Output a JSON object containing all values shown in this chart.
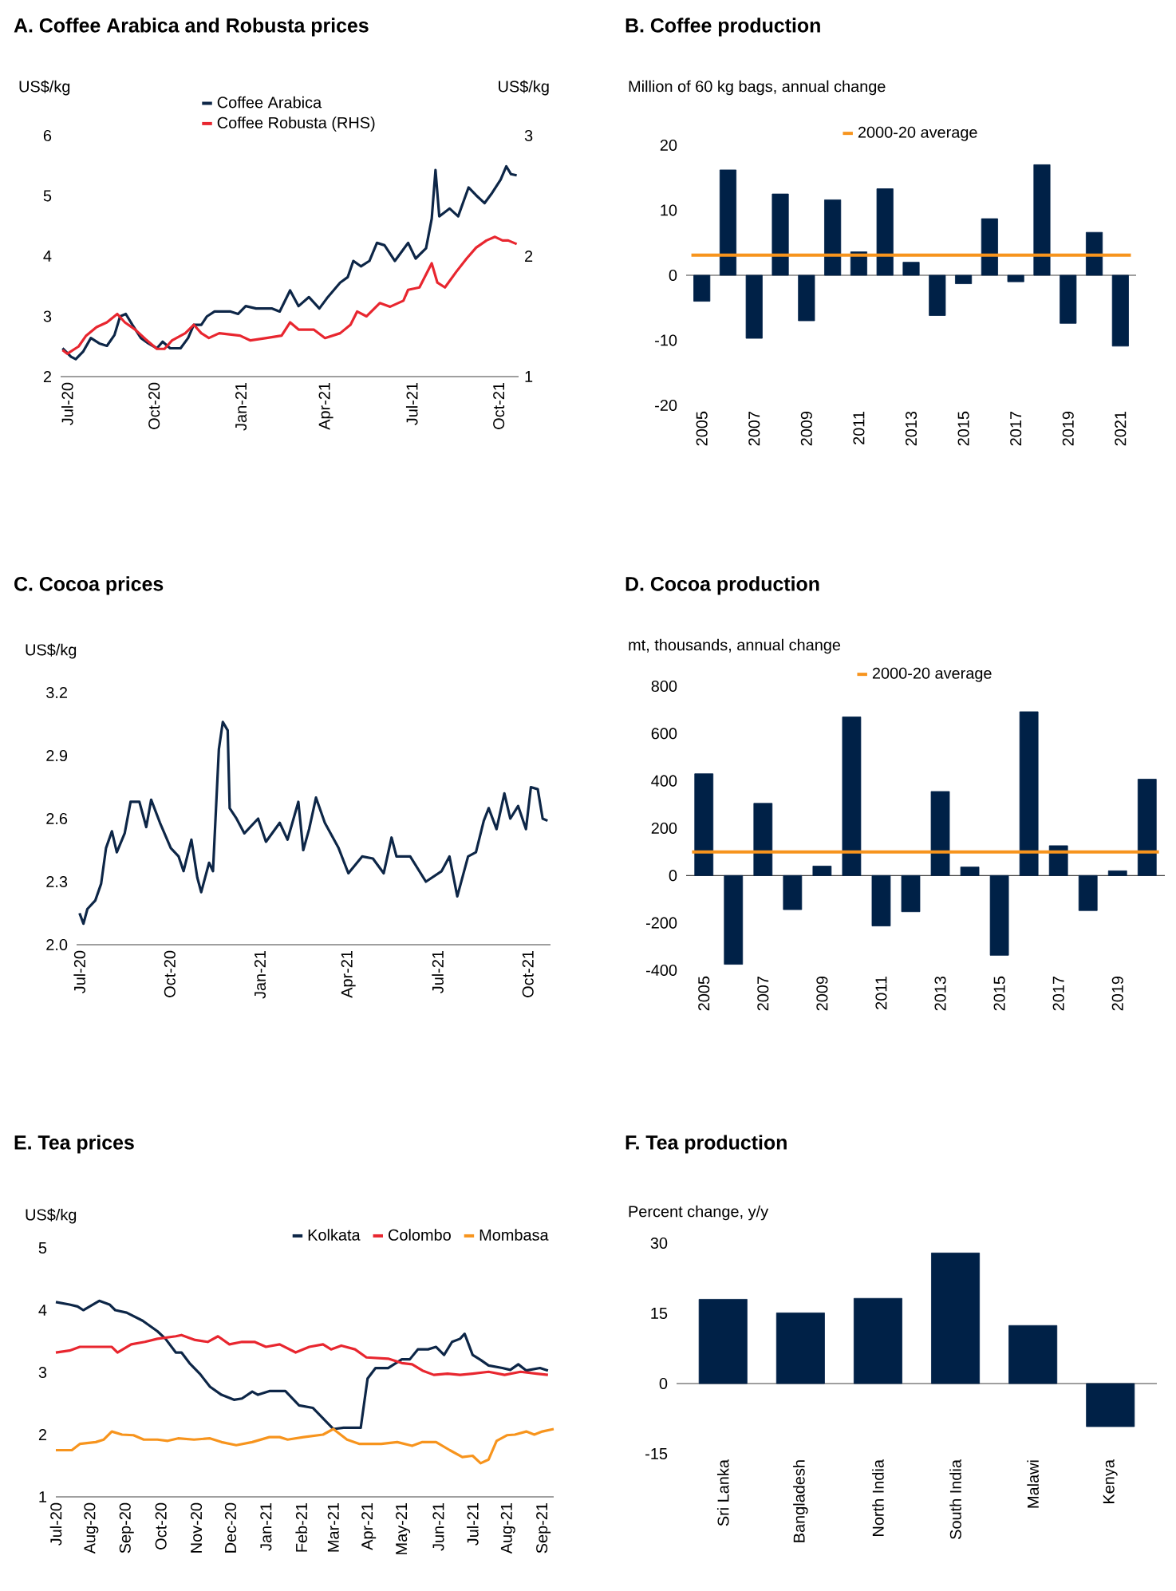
{
  "chart_data": [
    {
      "type": "line",
      "title": "A. Coffee Arabica and Robusta prices",
      "ylabel": "US$/kg",
      "y2label": "US$/kg",
      "legend": "top",
      "xlim": [
        "2020-06-24",
        "2021-10-22"
      ],
      "ylim": [
        2,
        6
      ],
      "yticks": [
        2,
        3,
        4,
        5,
        6
      ],
      "y2lim": [
        1,
        3
      ],
      "y2ticks": [
        1,
        2,
        3
      ],
      "xticks": [
        {
          "value": "2020-07-01",
          "label": "Jul-20"
        },
        {
          "value": "2020-10-01",
          "label": "Oct-20"
        },
        {
          "value": "2021-01-01",
          "label": "Jan-21"
        },
        {
          "value": "2021-04-01",
          "label": "Apr-21"
        },
        {
          "value": "2021-07-01",
          "label": "Jul-21"
        },
        {
          "value": "2021-10-01",
          "label": "Oct-21"
        }
      ],
      "series": [
        {
          "name": "Coffee Arabica",
          "color": "#0d2647",
          "x": [
            "2020-06-26",
            "2020-07-05",
            "2020-07-10",
            "2020-07-18",
            "2020-07-26",
            "2020-08-04",
            "2020-08-12",
            "2020-08-20",
            "2020-08-26",
            "2020-09-01",
            "2020-09-08",
            "2020-09-17",
            "2020-09-25",
            "2020-10-04",
            "2020-10-10",
            "2020-10-18",
            "2020-10-29",
            "2020-11-06",
            "2020-11-12",
            "2020-11-20",
            "2020-11-26",
            "2020-12-04",
            "2020-12-21",
            "2020-12-29",
            "2021-01-06",
            "2021-01-17",
            "2021-02-03",
            "2021-02-11",
            "2021-02-22",
            "2021-03-03",
            "2021-03-14",
            "2021-03-25",
            "2021-04-02",
            "2021-04-16",
            "2021-04-24",
            "2021-04-30",
            "2021-05-08",
            "2021-05-17",
            "2021-05-25",
            "2021-06-02",
            "2021-06-13",
            "2021-06-27",
            "2021-07-05",
            "2021-07-16",
            "2021-07-22",
            "2021-07-26",
            "2021-07-30",
            "2021-08-10",
            "2021-08-19",
            "2021-08-30",
            "2021-09-07",
            "2021-09-16",
            "2021-09-24",
            "2021-10-03",
            "2021-10-09",
            "2021-10-14",
            "2021-10-20"
          ],
          "values": [
            2.47,
            2.33,
            2.29,
            2.42,
            2.64,
            2.55,
            2.51,
            2.69,
            3.0,
            3.04,
            2.86,
            2.64,
            2.55,
            2.47,
            2.58,
            2.47,
            2.47,
            2.64,
            2.86,
            2.86,
            3.0,
            3.08,
            3.08,
            3.04,
            3.17,
            3.13,
            3.13,
            3.08,
            3.43,
            3.17,
            3.32,
            3.13,
            3.3,
            3.56,
            3.65,
            3.92,
            3.83,
            3.92,
            4.22,
            4.18,
            3.92,
            4.22,
            3.96,
            4.13,
            4.62,
            5.43,
            4.66,
            4.79,
            4.66,
            5.14,
            5.01,
            4.88,
            5.05,
            5.27,
            5.49,
            5.36,
            5.34
          ]
        },
        {
          "name": "Coffee Robusta (RHS)",
          "color": "#e8262f",
          "axis": "y2",
          "x": [
            "2020-06-26",
            "2020-07-01",
            "2020-07-13",
            "2020-07-21",
            "2020-08-01",
            "2020-08-12",
            "2020-08-23",
            "2020-08-31",
            "2020-09-11",
            "2020-09-22",
            "2020-10-04",
            "2020-10-12",
            "2020-10-20",
            "2020-11-03",
            "2020-11-12",
            "2020-11-20",
            "2020-11-28",
            "2020-12-09",
            "2020-12-31",
            "2021-01-11",
            "2021-01-28",
            "2021-02-13",
            "2021-02-22",
            "2021-03-03",
            "2021-03-19",
            "2021-03-31",
            "2021-04-16",
            "2021-04-27",
            "2021-05-04",
            "2021-05-14",
            "2021-05-28",
            "2021-06-08",
            "2021-06-22",
            "2021-06-27",
            "2021-07-09",
            "2021-07-22",
            "2021-07-28",
            "2021-08-05",
            "2021-08-17",
            "2021-08-28",
            "2021-09-07",
            "2021-09-18",
            "2021-09-27",
            "2021-10-05",
            "2021-10-11",
            "2021-10-20"
          ],
          "values": [
            1.22,
            1.19,
            1.25,
            1.34,
            1.41,
            1.45,
            1.52,
            1.45,
            1.39,
            1.31,
            1.23,
            1.23,
            1.3,
            1.36,
            1.43,
            1.36,
            1.32,
            1.36,
            1.34,
            1.3,
            1.32,
            1.34,
            1.45,
            1.39,
            1.39,
            1.32,
            1.36,
            1.43,
            1.54,
            1.5,
            1.61,
            1.58,
            1.63,
            1.72,
            1.74,
            1.94,
            1.78,
            1.74,
            1.87,
            1.98,
            2.07,
            2.13,
            2.16,
            2.13,
            2.13,
            2.1
          ]
        }
      ]
    },
    {
      "type": "bar",
      "title": "B. Coffee production",
      "ylabel": "Million of 60 kg bags, annual change",
      "legend": "top",
      "color": "#002147",
      "categories": [
        "2005",
        null,
        "2007",
        null,
        "2009",
        null,
        "2011",
        null,
        "2013",
        null,
        "2015",
        null,
        "2017",
        null,
        "2019",
        null,
        "2021"
      ],
      "values": [
        -4.0,
        16.2,
        -9.7,
        12.5,
        -7.0,
        11.6,
        3.6,
        13.3,
        2.0,
        -6.2,
        -1.3,
        8.7,
        -1.0,
        17.0,
        -7.4,
        6.6,
        -10.9
      ],
      "ylim": [
        -20,
        20
      ],
      "yticks": [
        -20,
        -10,
        0,
        10,
        20
      ],
      "ref_lines": [
        {
          "axis": "y",
          "value": 3.1,
          "label": "2000-20 average",
          "color": "#f7941d"
        }
      ]
    },
    {
      "type": "line",
      "title": "C. Cocoa prices",
      "ylabel": "US$/kg",
      "xlim": [
        "2020-06-28",
        "2021-10-24"
      ],
      "ylim": [
        2.0,
        3.2
      ],
      "yticks": [
        {
          "value": 2.0,
          "label": "2.0"
        },
        2.3,
        2.6,
        2.9,
        3.2
      ],
      "xticks": [
        {
          "value": "2020-07-01",
          "label": "Jul-20"
        },
        {
          "value": "2020-10-01",
          "label": "Oct-20"
        },
        {
          "value": "2021-01-01",
          "label": "Jan-21"
        },
        {
          "value": "2021-04-01",
          "label": "Apr-21"
        },
        {
          "value": "2021-07-01",
          "label": "Jul-21"
        },
        {
          "value": "2021-10-01",
          "label": "Oct-21"
        }
      ],
      "series": [
        {
          "color": "#0d2647",
          "x": [
            "2020-07-01",
            "2020-07-05",
            "2020-07-09",
            "2020-07-17",
            "2020-07-23",
            "2020-07-28",
            "2020-08-03",
            "2020-08-08",
            "2020-08-16",
            "2020-08-22",
            "2020-08-31",
            "2020-09-07",
            "2020-09-12",
            "2020-09-21",
            "2020-10-02",
            "2020-10-10",
            "2020-10-15",
            "2020-10-23",
            "2020-10-29",
            "2020-11-02",
            "2020-11-10",
            "2020-11-14",
            "2020-11-20",
            "2020-11-24",
            "2020-11-29",
            "2020-12-01",
            "2020-12-08",
            "2020-12-16",
            "2020-12-30",
            "2021-01-07",
            "2021-01-21",
            "2021-01-29",
            "2021-02-09",
            "2021-02-14",
            "2021-02-20",
            "2021-02-27",
            "2021-03-08",
            "2021-03-22",
            "2021-04-01",
            "2021-04-15",
            "2021-04-26",
            "2021-05-07",
            "2021-05-15",
            "2021-05-20",
            "2021-06-03",
            "2021-06-19",
            "2021-07-05",
            "2021-07-13",
            "2021-07-21",
            "2021-08-01",
            "2021-08-09",
            "2021-08-17",
            "2021-08-22",
            "2021-08-30",
            "2021-09-07",
            "2021-09-13",
            "2021-09-21",
            "2021-09-29",
            "2021-10-04",
            "2021-10-11",
            "2021-10-16",
            "2021-10-21"
          ],
          "values": [
            2.15,
            2.1,
            2.17,
            2.21,
            2.29,
            2.46,
            2.54,
            2.44,
            2.53,
            2.68,
            2.68,
            2.56,
            2.69,
            2.58,
            2.46,
            2.42,
            2.35,
            2.5,
            2.32,
            2.25,
            2.39,
            2.35,
            2.93,
            3.06,
            3.02,
            2.65,
            2.6,
            2.53,
            2.6,
            2.49,
            2.58,
            2.5,
            2.68,
            2.45,
            2.55,
            2.7,
            2.58,
            2.46,
            2.34,
            2.42,
            2.41,
            2.34,
            2.51,
            2.42,
            2.42,
            2.3,
            2.35,
            2.42,
            2.23,
            2.42,
            2.44,
            2.59,
            2.65,
            2.55,
            2.72,
            2.6,
            2.66,
            2.55,
            2.75,
            2.74,
            2.6,
            2.59
          ]
        }
      ]
    },
    {
      "type": "bar",
      "title": "D. Cocoa production",
      "ylabel": "mt, thousands, annual change",
      "legend": "top",
      "color": "#002147",
      "categories": [
        "2005",
        null,
        "2007",
        null,
        "2009",
        null,
        "2011",
        null,
        "2013",
        null,
        "2015",
        null,
        "2017",
        null,
        "2019",
        null
      ],
      "values": [
        430,
        -375,
        305,
        -144,
        40,
        670,
        -213,
        -153,
        355,
        36,
        -337,
        692,
        126,
        -148,
        20,
        407
      ],
      "ylim": [
        -400,
        800
      ],
      "yticks": [
        -400,
        -200,
        0,
        200,
        400,
        600,
        800
      ],
      "ref_lines": [
        {
          "axis": "y",
          "value": 100,
          "label": "2000-20 average",
          "color": "#f7941d"
        }
      ]
    },
    {
      "type": "line",
      "title": "E. Tea prices",
      "ylabel": "US$/kg",
      "legend": "top right",
      "xlim": [
        "2020-07-01",
        "2021-09-10"
      ],
      "ylim": [
        1,
        5
      ],
      "yticks": [
        1,
        2,
        3,
        4,
        5
      ],
      "xticks": [
        {
          "value": "2020-07-01",
          "label": "Jul-20"
        },
        {
          "value": "2020-08-01",
          "label": "Aug-20"
        },
        {
          "value": "2020-09-01",
          "label": "Sep-20"
        },
        {
          "value": "2020-10-01",
          "label": "Oct-20"
        },
        {
          "value": "2020-11-01",
          "label": "Nov-20"
        },
        {
          "value": "2020-12-01",
          "label": "Dec-20"
        },
        {
          "value": "2021-01-01",
          "label": "Jan-21"
        },
        {
          "value": "2021-02-01",
          "label": "Feb-21"
        },
        {
          "value": "2021-03-01",
          "label": "Mar-21"
        },
        {
          "value": "2021-04-01",
          "label": "Apr-21"
        },
        {
          "value": "2021-05-01",
          "label": "May-21"
        },
        {
          "value": "2021-06-01",
          "label": "Jun-21"
        },
        {
          "value": "2021-07-01",
          "label": "Jul-21"
        },
        {
          "value": "2021-08-01",
          "label": "Aug-21"
        },
        {
          "value": "2021-09-01",
          "label": "Sep-21"
        }
      ],
      "series": [
        {
          "name": "Kolkata",
          "color": "#0d2647",
          "x": [
            "2020-07-01",
            "2020-07-13",
            "2020-07-20",
            "2020-07-25",
            "2020-08-08",
            "2020-08-17",
            "2020-08-22",
            "2020-09-01",
            "2020-09-15",
            "2020-09-28",
            "2020-10-05",
            "2020-10-14",
            "2020-10-19",
            "2020-10-26",
            "2020-11-04",
            "2020-11-13",
            "2020-11-23",
            "2020-12-04",
            "2020-12-11",
            "2020-12-20",
            "2020-12-25",
            "2021-01-04",
            "2021-01-18",
            "2021-01-30",
            "2021-02-11",
            "2021-02-20",
            "2021-03-01",
            "2021-03-10",
            "2021-03-25",
            "2021-03-31",
            "2021-04-07",
            "2021-04-18",
            "2021-04-30",
            "2021-05-07",
            "2021-05-14",
            "2021-05-23",
            "2021-05-30",
            "2021-06-06",
            "2021-06-13",
            "2021-06-20",
            "2021-06-24",
            "2021-07-01",
            "2021-07-08",
            "2021-07-15",
            "2021-07-27",
            "2021-08-03",
            "2021-08-10",
            "2021-08-17",
            "2021-08-29",
            "2021-09-05"
          ],
          "values": [
            4.13,
            4.09,
            4.06,
            4.0,
            4.15,
            4.09,
            4.0,
            3.96,
            3.83,
            3.66,
            3.54,
            3.32,
            3.32,
            3.15,
            2.98,
            2.77,
            2.64,
            2.56,
            2.58,
            2.69,
            2.64,
            2.7,
            2.7,
            2.47,
            2.43,
            2.26,
            2.09,
            2.11,
            2.11,
            2.9,
            3.07,
            3.07,
            3.21,
            3.21,
            3.37,
            3.37,
            3.41,
            3.28,
            3.49,
            3.54,
            3.62,
            3.28,
            3.2,
            3.11,
            3.07,
            3.04,
            3.13,
            3.03,
            3.07,
            3.03
          ]
        },
        {
          "name": "Colombo",
          "color": "#e8262f",
          "x": [
            "2020-07-01",
            "2020-07-13",
            "2020-07-22",
            "2020-08-03",
            "2020-08-19",
            "2020-08-24",
            "2020-09-05",
            "2020-09-17",
            "2020-09-28",
            "2020-10-14",
            "2020-10-19",
            "2020-10-31",
            "2020-11-11",
            "2020-11-20",
            "2020-11-30",
            "2020-12-11",
            "2020-12-22",
            "2021-01-01",
            "2021-01-13",
            "2021-01-27",
            "2021-02-08",
            "2021-02-20",
            "2021-02-27",
            "2021-03-08",
            "2021-03-20",
            "2021-03-30",
            "2021-04-18",
            "2021-04-30",
            "2021-05-09",
            "2021-05-18",
            "2021-05-28",
            "2021-06-09",
            "2021-06-20",
            "2021-07-01",
            "2021-07-15",
            "2021-07-29",
            "2021-08-12",
            "2021-08-26",
            "2021-09-05"
          ],
          "values": [
            3.32,
            3.35,
            3.41,
            3.41,
            3.41,
            3.32,
            3.45,
            3.49,
            3.54,
            3.58,
            3.6,
            3.52,
            3.49,
            3.58,
            3.45,
            3.49,
            3.49,
            3.41,
            3.45,
            3.32,
            3.41,
            3.45,
            3.37,
            3.43,
            3.37,
            3.24,
            3.22,
            3.15,
            3.13,
            3.03,
            2.96,
            2.98,
            2.96,
            2.98,
            3.01,
            2.96,
            3.01,
            2.98,
            2.96
          ]
        },
        {
          "name": "Mombasa",
          "color": "#f7941d",
          "x": [
            "2020-07-01",
            "2020-07-15",
            "2020-07-22",
            "2020-08-05",
            "2020-08-12",
            "2020-08-19",
            "2020-08-28",
            "2020-09-07",
            "2020-09-16",
            "2020-09-28",
            "2020-10-07",
            "2020-10-16",
            "2020-10-30",
            "2020-11-13",
            "2020-11-23",
            "2020-12-06",
            "2020-12-20",
            "2021-01-04",
            "2021-01-13",
            "2021-01-20",
            "2021-02-03",
            "2021-02-20",
            "2021-03-01",
            "2021-03-13",
            "2021-03-24",
            "2021-04-12",
            "2021-04-26",
            "2021-05-09",
            "2021-05-18",
            "2021-05-30",
            "2021-06-11",
            "2021-06-22",
            "2021-07-01",
            "2021-07-08",
            "2021-07-15",
            "2021-07-22",
            "2021-07-31",
            "2021-08-07",
            "2021-08-17",
            "2021-08-24",
            "2021-08-31",
            "2021-09-10"
          ],
          "values": [
            1.75,
            1.75,
            1.85,
            1.88,
            1.92,
            2.05,
            2.0,
            1.99,
            1.92,
            1.92,
            1.9,
            1.94,
            1.92,
            1.94,
            1.88,
            1.83,
            1.88,
            1.96,
            1.96,
            1.92,
            1.96,
            2.0,
            2.09,
            1.92,
            1.85,
            1.85,
            1.88,
            1.82,
            1.88,
            1.88,
            1.75,
            1.64,
            1.66,
            1.54,
            1.6,
            1.9,
            1.99,
            2.0,
            2.05,
            2.0,
            2.05,
            2.09
          ]
        }
      ]
    },
    {
      "type": "bar",
      "title": "F. Tea production",
      "ylabel": "Percent change, y/y",
      "color": "#002147",
      "categories": [
        "Sri Lanka",
        "Bangladesh",
        "North India",
        "South India",
        "Malawi",
        "Kenya"
      ],
      "values": [
        18.0,
        15.1,
        18.2,
        27.9,
        12.4,
        -9.2
      ],
      "ylim": [
        -15,
        30
      ],
      "yticks": [
        -15,
        0,
        15,
        30
      ]
    }
  ]
}
